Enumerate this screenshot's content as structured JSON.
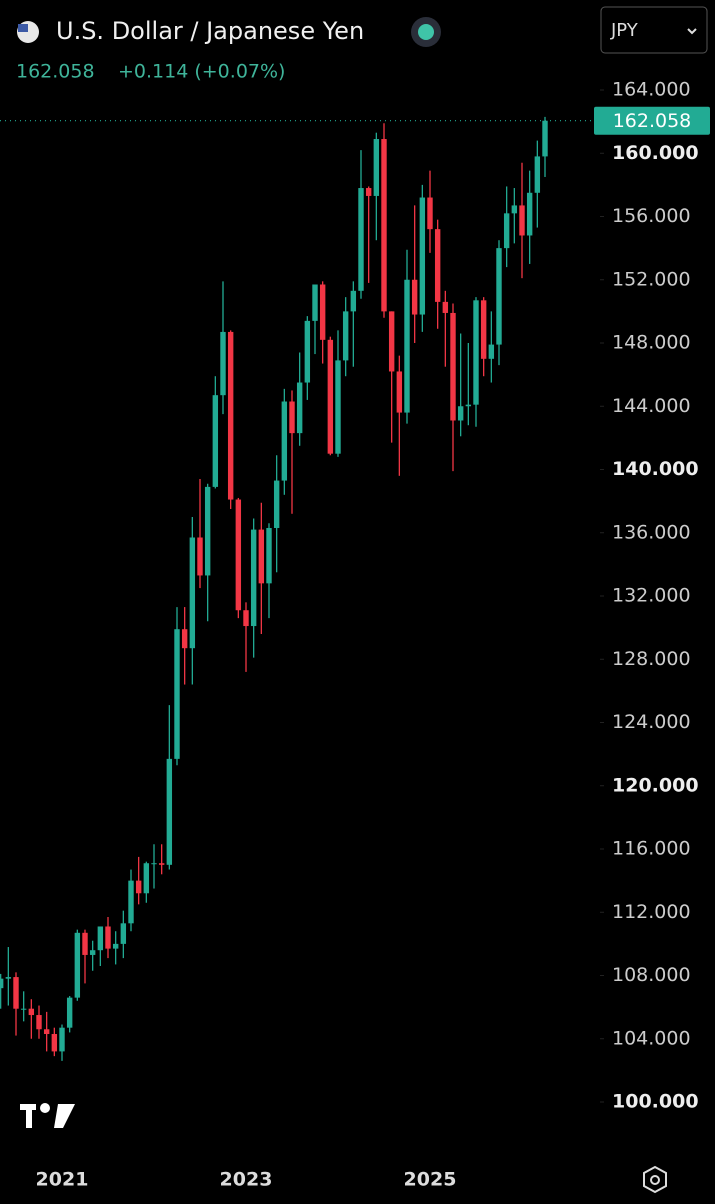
{
  "chart_data": {
    "type": "candlestick",
    "title": "U.S. Dollar / Japanese Yen",
    "last_price": 162.058,
    "change_text": "+0.114 (+0.07%)",
    "currency": "JPY",
    "up_color": "#22ab94",
    "down_color": "#f23645",
    "categories": [
      null,
      null,
      null,
      null,
      null,
      null,
      null,
      null,
      "2021",
      null,
      null,
      null,
      null,
      null,
      null,
      null,
      null,
      null,
      null,
      null,
      null,
      null,
      null,
      null,
      null,
      null,
      null,
      null,
      null,
      null,
      null,
      null,
      "2023",
      null,
      null,
      null,
      null,
      null,
      null,
      null,
      null,
      null,
      null,
      null,
      null,
      null,
      null,
      null,
      null,
      null,
      null,
      null,
      null,
      null,
      null,
      null,
      "2025",
      null,
      null,
      null,
      null,
      null,
      null,
      null,
      null,
      null,
      null,
      null,
      null,
      null,
      null,
      null
    ],
    "open": [
      107.2,
      107.8,
      107.9,
      105.9,
      105.9,
      105.5,
      104.6,
      104.3,
      103.2,
      104.7,
      106.6,
      110.7,
      109.3,
      109.6,
      111.1,
      109.7,
      110.0,
      111.3,
      114.0,
      113.2,
      115.1,
      115.1,
      115.0,
      121.7,
      129.9,
      128.7,
      135.7,
      133.3,
      138.9,
      144.7,
      148.7,
      138.1,
      131.1,
      130.1,
      136.2,
      132.8,
      136.3,
      139.3,
      144.3,
      142.3,
      145.5,
      149.4,
      151.7,
      148.2,
      141.0,
      146.9,
      150.0,
      151.3,
      157.8,
      157.3,
      160.9,
      150.0,
      146.2,
      143.6,
      152.0,
      149.8,
      157.2,
      155.2,
      150.6,
      149.9,
      143.1,
      144.0,
      144.1,
      150.7,
      147.0,
      147.9,
      154.0,
      156.2,
      156.7,
      154.8,
      157.5,
      159.8
    ],
    "high": [
      108.1,
      109.8,
      108.2,
      107.0,
      106.5,
      106.1,
      105.7,
      104.7,
      104.9,
      106.7,
      110.9,
      110.9,
      110.2,
      111.1,
      111.7,
      110.8,
      112.1,
      114.7,
      115.5,
      115.2,
      116.3,
      116.3,
      125.1,
      131.3,
      131.3,
      137.0,
      139.4,
      139.1,
      145.9,
      151.9,
      148.8,
      138.2,
      131.6,
      136.9,
      137.9,
      136.6,
      140.9,
      145.1,
      145.0,
      147.4,
      149.7,
      151.7,
      151.9,
      148.4,
      148.8,
      150.9,
      151.9,
      160.2,
      157.9,
      161.3,
      161.9,
      150.0,
      147.2,
      153.9,
      156.7,
      158.0,
      158.9,
      155.8,
      151.3,
      150.5,
      148.6,
      148.0,
      150.9,
      150.9,
      150.0,
      154.5,
      157.9,
      157.8,
      159.4,
      158.9,
      160.8,
      162.3
    ],
    "low": [
      105.9,
      106.1,
      104.2,
      105.1,
      104.0,
      104.0,
      103.2,
      102.9,
      102.6,
      104.4,
      106.4,
      107.5,
      108.3,
      108.6,
      109.1,
      108.7,
      109.1,
      110.8,
      112.5,
      112.6,
      113.5,
      114.4,
      114.7,
      121.3,
      126.4,
      126.4,
      132.5,
      130.4,
      138.8,
      143.5,
      137.5,
      130.6,
      127.2,
      128.1,
      129.6,
      130.6,
      133.5,
      138.4,
      137.2,
      141.5,
      144.4,
      147.3,
      146.7,
      140.9,
      140.8,
      145.9,
      146.5,
      150.8,
      151.8,
      154.5,
      149.6,
      141.7,
      139.6,
      142.9,
      148.0,
      148.7,
      153.7,
      148.9,
      146.5,
      139.9,
      142.1,
      142.8,
      142.7,
      145.9,
      145.5,
      146.6,
      152.8,
      154.3,
      152.1,
      153.0,
      155.3,
      158.5
    ],
    "close": [
      107.8,
      107.9,
      105.9,
      105.9,
      105.5,
      104.6,
      104.3,
      103.2,
      104.7,
      106.6,
      110.7,
      109.3,
      109.6,
      111.1,
      109.7,
      110.0,
      111.3,
      114.0,
      113.2,
      115.1,
      115.1,
      115.0,
      121.7,
      129.9,
      128.7,
      135.7,
      133.3,
      138.9,
      144.7,
      148.7,
      138.1,
      131.1,
      130.1,
      136.2,
      132.8,
      136.3,
      139.3,
      144.3,
      142.3,
      145.5,
      149.4,
      151.7,
      148.2,
      141.0,
      146.9,
      150.0,
      151.3,
      157.8,
      157.3,
      160.9,
      150.0,
      146.2,
      143.6,
      152.0,
      149.8,
      157.2,
      155.2,
      150.6,
      149.9,
      143.1,
      144.0,
      144.1,
      150.7,
      147.0,
      147.9,
      154.0,
      156.2,
      156.7,
      154.8,
      157.5,
      159.8,
      162.058
    ],
    "ylim": [
      97.5,
      165.2
    ],
    "yticks": [
      {
        "value": 100,
        "label": "100.000"
      },
      {
        "value": 104,
        "label": "104.000"
      },
      {
        "value": 108,
        "label": "108.000"
      },
      {
        "value": 112,
        "label": "112.000"
      },
      {
        "value": 116,
        "label": "116.000"
      },
      {
        "value": 120,
        "label": "120.000"
      },
      {
        "value": 124,
        "label": "124.000"
      },
      {
        "value": 128,
        "label": "128.000"
      },
      {
        "value": 132,
        "label": "132.000"
      },
      {
        "value": 136,
        "label": "136.000"
      },
      {
        "value": 140,
        "label": "140.000"
      },
      {
        "value": 144,
        "label": "144.000"
      },
      {
        "value": 148,
        "label": "148.000"
      },
      {
        "value": 152,
        "label": "152.000"
      },
      {
        "value": 156,
        "label": "156.000"
      },
      {
        "value": 160,
        "label": "160.000"
      },
      {
        "value": 164,
        "label": "164.000"
      }
    ],
    "grid": false
  }
}
